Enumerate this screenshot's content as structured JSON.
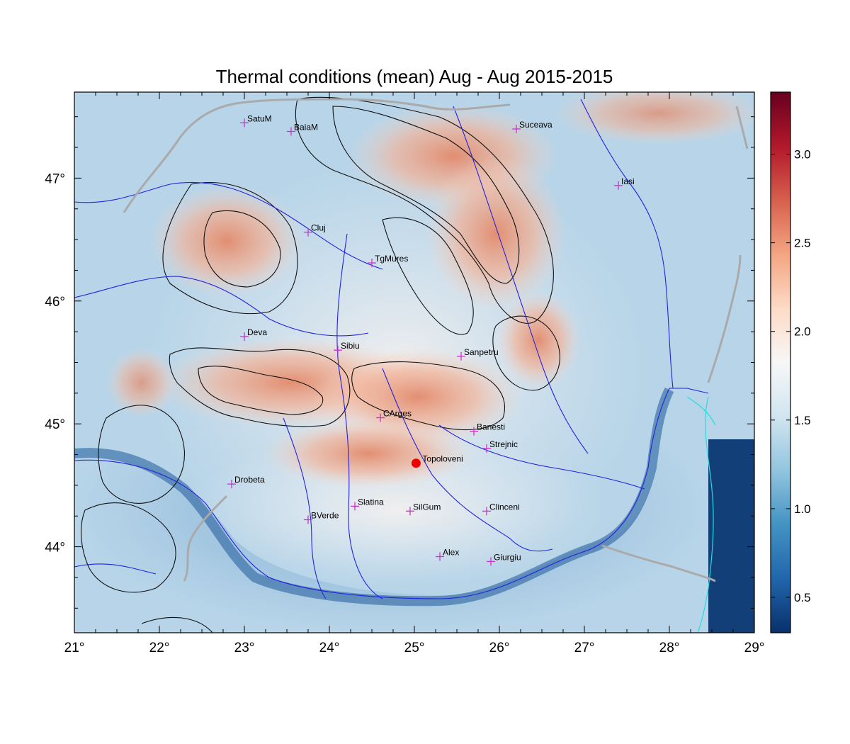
{
  "title": "Thermal conditions (mean) Aug - Aug  2015-2015",
  "x_tick_labels": [
    "21°",
    "22°",
    "23°",
    "24°",
    "25°",
    "26°",
    "27°",
    "28°",
    "29°"
  ],
  "y_tick_labels": [
    "44°",
    "45°",
    "46°",
    "47°"
  ],
  "colorbar": {
    "tick_labels": [
      "0.5",
      "1.0",
      "1.5",
      "2.0",
      "2.5",
      "3.0"
    ],
    "range": [
      0.3,
      3.35
    ],
    "colors": [
      "#08306b",
      "#2166ac",
      "#4393c3",
      "#92c5de",
      "#d1e5f0",
      "#f7f7f7",
      "#fddbc7",
      "#f4a582",
      "#d6604d",
      "#b2182b",
      "#67001f"
    ]
  },
  "extent": {
    "lon": [
      21,
      29
    ],
    "lat": [
      43.3,
      47.7
    ]
  },
  "marker_color": "#cc33cc",
  "highlight_color": "#ee0000",
  "cities": [
    {
      "name": "SatuM",
      "lon": 23.0,
      "lat": 47.45
    },
    {
      "name": "BaiaM",
      "lon": 23.55,
      "lat": 47.38
    },
    {
      "name": "Suceava",
      "lon": 26.2,
      "lat": 47.4
    },
    {
      "name": "Iasi",
      "lon": 27.4,
      "lat": 46.94
    },
    {
      "name": "Cluj",
      "lon": 23.75,
      "lat": 46.56
    },
    {
      "name": "TgMures",
      "lon": 24.5,
      "lat": 46.31
    },
    {
      "name": "Deva",
      "lon": 23.0,
      "lat": 45.71
    },
    {
      "name": "Sibiu",
      "lon": 24.1,
      "lat": 45.6
    },
    {
      "name": "Sanpetru",
      "lon": 25.55,
      "lat": 45.55
    },
    {
      "name": "CArges",
      "lon": 24.6,
      "lat": 45.05
    },
    {
      "name": "Banesti",
      "lon": 25.7,
      "lat": 44.94
    },
    {
      "name": "Strejnic",
      "lon": 25.85,
      "lat": 44.8
    },
    {
      "name": "Drobeta",
      "lon": 22.85,
      "lat": 44.51
    },
    {
      "name": "Slatina",
      "lon": 24.3,
      "lat": 44.33
    },
    {
      "name": "SilGum",
      "lon": 24.95,
      "lat": 44.29
    },
    {
      "name": "Clinceni",
      "lon": 25.85,
      "lat": 44.29
    },
    {
      "name": "BVerde",
      "lon": 23.75,
      "lat": 44.22
    },
    {
      "name": "Alex",
      "lon": 25.3,
      "lat": 43.92
    },
    {
      "name": "Giurgiu",
      "lon": 25.9,
      "lat": 43.88
    }
  ],
  "highlight_city": {
    "name": "Topoloveni",
    "lon": 25.02,
    "lat": 44.68
  }
}
